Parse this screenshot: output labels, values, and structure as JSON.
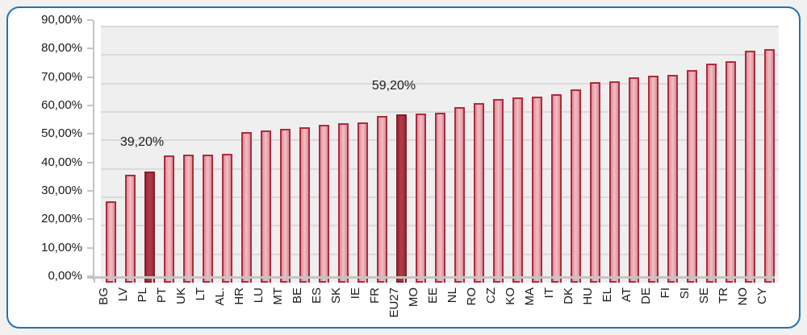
{
  "chart_data": {
    "type": "bar",
    "title": "",
    "xlabel": "",
    "ylabel": "",
    "ylim": [
      0,
      90
    ],
    "ytick_step": 10,
    "ytick_labels": [
      "0,00%",
      "10,00%",
      "20,00%",
      "30,00%",
      "40,00%",
      "50,00%",
      "60,00%",
      "70,00%",
      "80,00%",
      "90,00%"
    ],
    "grid": true,
    "legend": false,
    "categories": [
      "BG",
      "LV",
      "PL",
      "PT",
      "UK",
      "LT",
      "AL.",
      "HR",
      "LU",
      "MT",
      "BE",
      "ES",
      "SK",
      "IE",
      "FR",
      "EU27",
      "MO",
      "EE",
      "NL",
      "RO",
      "CZ",
      "KO",
      "MA",
      "IT",
      "DK",
      "HU",
      "EL",
      "AT",
      "DE",
      "FI",
      "SI",
      "SE",
      "TR",
      "NO",
      "CY"
    ],
    "values": [
      28.5,
      38.0,
      39.2,
      44.8,
      44.9,
      45.0,
      45.3,
      52.9,
      53.5,
      54.0,
      54.5,
      55.4,
      56.0,
      56.4,
      58.5,
      59.2,
      59.5,
      59.6,
      61.8,
      63.2,
      64.6,
      65.0,
      65.3,
      66.3,
      68.0,
      70.4,
      70.8,
      72.2,
      72.7,
      72.9,
      74.7,
      77.0,
      77.8,
      81.5,
      82.0
    ],
    "highlighted_categories": [
      "PL",
      "EU27"
    ],
    "annotations": [
      {
        "category": "PL",
        "label": "39,20%"
      },
      {
        "category": "EU27",
        "label": "59,20%"
      }
    ]
  },
  "colors": {
    "frame_border": "#2272b4",
    "card_bg": "#ffffff",
    "outer_bg": "#f1f1f1",
    "plot_bg": "#efefef",
    "gridline": "#dadada",
    "axis": "#c4c4c4",
    "text": "#1a1a1a",
    "bar_border": "#af2b3b",
    "bar_fill_edge": "#de8e99",
    "bar_fill_center": "#f1bfc5",
    "bar_dark_border": "#871e2a",
    "bar_dark_fill_edge": "#9d2b37",
    "bar_dark_fill_center": "#ae3d49"
  }
}
